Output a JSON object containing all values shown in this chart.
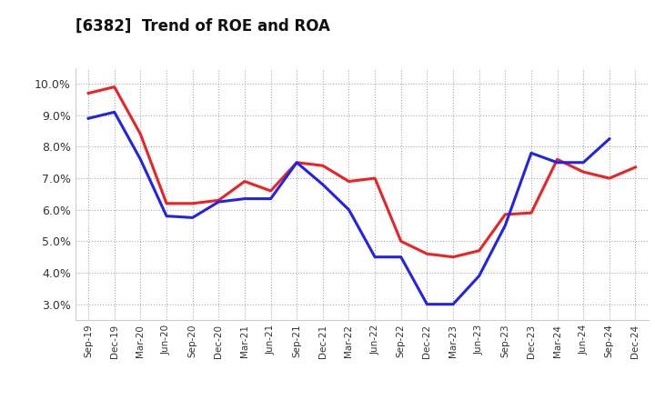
{
  "title": "[6382]  Trend of ROE and ROA",
  "labels": [
    "Sep-19",
    "Dec-19",
    "Mar-20",
    "Jun-20",
    "Sep-20",
    "Dec-20",
    "Mar-21",
    "Jun-21",
    "Sep-21",
    "Dec-21",
    "Mar-22",
    "Jun-22",
    "Sep-22",
    "Dec-22",
    "Mar-23",
    "Jun-23",
    "Sep-23",
    "Dec-23",
    "Mar-24",
    "Jun-24",
    "Sep-24",
    "Dec-24"
  ],
  "ROE": [
    9.7,
    9.9,
    8.4,
    6.2,
    6.2,
    6.3,
    6.9,
    6.6,
    7.5,
    7.4,
    6.9,
    7.0,
    5.0,
    4.6,
    4.5,
    4.7,
    5.85,
    5.9,
    7.6,
    7.2,
    7.0,
    7.35
  ],
  "ROA": [
    8.9,
    9.1,
    7.6,
    5.8,
    5.75,
    6.25,
    6.35,
    6.35,
    7.5,
    6.8,
    6.0,
    4.5,
    4.5,
    3.0,
    3.0,
    3.9,
    5.5,
    7.8,
    7.5,
    7.5,
    8.25,
    null
  ],
  "ylim": [
    2.5,
    10.5
  ],
  "yticks": [
    3.0,
    4.0,
    5.0,
    6.0,
    7.0,
    8.0,
    9.0,
    10.0
  ],
  "roe_color": "#ee2222",
  "roa_color": "#2222ee",
  "background_color": "#ffffff",
  "grid_color": "#aaaaaa",
  "linewidth": 2.2
}
